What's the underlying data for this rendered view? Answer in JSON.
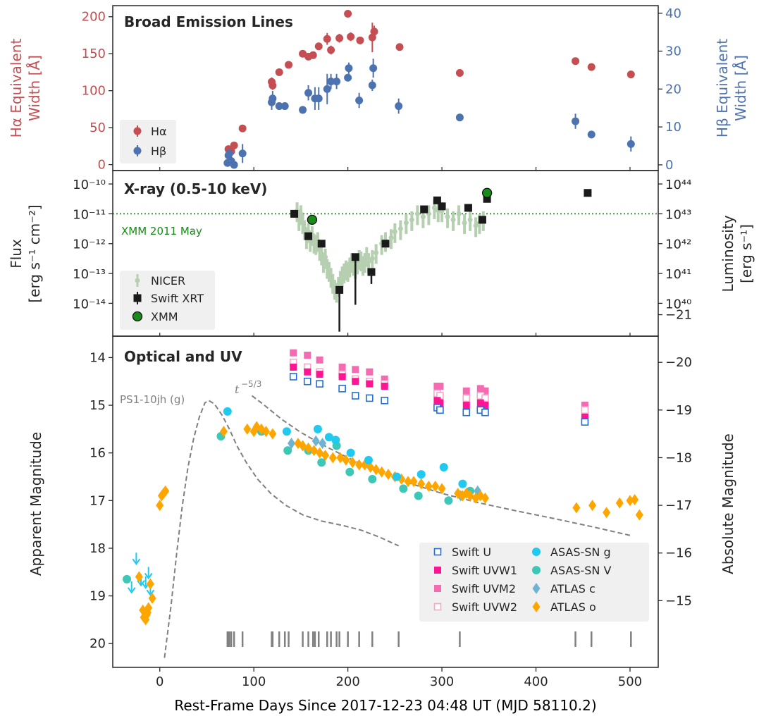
{
  "chart_data": [
    {
      "type": "scatter",
      "title": "Broad Emission Lines",
      "ylabel": "Hα Equivalent Width [Å]",
      "ylabel_lines": [
        "Hα Equivalent",
        "Width [Å]"
      ],
      "y2label": "Hβ Equivalent Width [Å]",
      "y2label_lines": [
        "Hβ Equivalent",
        "Width [Å]"
      ],
      "xlim": [
        -50,
        530
      ],
      "ylim": [
        -8,
        215
      ],
      "y2lim": [
        -1.5,
        42
      ],
      "yticks": [
        0,
        50,
        100,
        150,
        200
      ],
      "y2ticks": [
        0,
        10,
        20,
        30,
        40
      ],
      "series": [
        {
          "name": "Hα",
          "color": "#c44e52",
          "x": [
            73,
            76,
            79,
            88,
            119,
            120,
            127,
            137,
            152,
            158,
            163,
            169,
            178,
            182,
            191,
            200,
            203,
            213,
            226,
            228,
            255,
            319,
            442,
            459,
            501
          ],
          "y": [
            21,
            18,
            26,
            49,
            112,
            107,
            125,
            135,
            150,
            146,
            148,
            160,
            170,
            155,
            171,
            204,
            173,
            168,
            172,
            180,
            159,
            124,
            140,
            132,
            122
          ],
          "yerr": [
            4,
            3,
            3,
            4,
            6,
            6,
            4,
            4,
            4,
            4,
            4,
            5,
            8,
            6,
            6,
            4,
            6,
            5,
            20,
            8,
            5,
            4,
            4,
            4,
            3
          ]
        },
        {
          "name": "Hβ",
          "color": "#4c72b0",
          "x": [
            72,
            73,
            74,
            76,
            79,
            88,
            119,
            120,
            127,
            133,
            152,
            158,
            165,
            169,
            178,
            182,
            188,
            200,
            201,
            212,
            226,
            227,
            254,
            319,
            442,
            459,
            501
          ],
          "y": [
            0.5,
            2.5,
            3,
            1,
            0,
            3,
            16.5,
            17.5,
            15.5,
            15.5,
            14.5,
            19,
            17.5,
            17.5,
            20,
            22,
            22,
            23,
            25.5,
            17,
            21,
            25.5,
            15.5,
            12.5,
            11.5,
            8,
            5.5
          ],
          "yerr": [
            0.8,
            1,
            1,
            1,
            1,
            2.5,
            2,
            2,
            1,
            1,
            1,
            2,
            3,
            3,
            4,
            2,
            2,
            1,
            1.5,
            2,
            1.5,
            2.5,
            2,
            1,
            2,
            1,
            2
          ]
        }
      ],
      "legend": {
        "position": "lower left",
        "entries": [
          "Hα",
          "Hβ"
        ]
      }
    },
    {
      "type": "scatter",
      "title": "X-ray (0.5-10 keV)",
      "ylabel": "Flux [erg s⁻¹ cm⁻²]",
      "ylabel_lines": [
        "Flux",
        "[erg s⁻¹ cm⁻²]"
      ],
      "y2label": "Luminosity [erg s⁻¹]",
      "y2label_lines": [
        "Luminosity",
        "[erg s⁻¹]"
      ],
      "yscale": "log",
      "y_log_lim": [
        -15.1,
        -9.55
      ],
      "yticks": [
        "10⁻¹⁰",
        "10⁻¹¹",
        "10⁻¹²",
        "10⁻¹³",
        "10⁻¹⁴"
      ],
      "y2ticks": [
        "10⁴⁴",
        "10⁴³",
        "10⁴²",
        "10⁴¹",
        "10⁴⁰"
      ],
      "reference_line": {
        "label": "XMM 2011 May",
        "log_flux": -11.0,
        "color": "#1a8a1a"
      },
      "series": [
        {
          "name": "NICER",
          "color": "#b6cfb1",
          "x": [
            146,
            148,
            150,
            152,
            154,
            156,
            158,
            160,
            162,
            164,
            166,
            168,
            170,
            172,
            174,
            176,
            178,
            180,
            182,
            184,
            186,
            188,
            190,
            192,
            194,
            196,
            198,
            200,
            202,
            204,
            206,
            208,
            210,
            212,
            214,
            216,
            218,
            220,
            222,
            226,
            230,
            236,
            240,
            246,
            250,
            256,
            262,
            268,
            274,
            280,
            286,
            292,
            296,
            300,
            306,
            312,
            318,
            324,
            330,
            336,
            340,
            344
          ],
          "y": [
            -10.9,
            -11.2,
            -11.0,
            -11.3,
            -11.5,
            -11.8,
            -11.6,
            -11.9,
            -11.7,
            -11.95,
            -12.0,
            -11.9,
            -12.2,
            -12.35,
            -12.6,
            -12.45,
            -12.8,
            -12.9,
            -13.1,
            -13.3,
            -13.5,
            -13.6,
            -13.4,
            -13.2,
            -13.05,
            -12.95,
            -12.85,
            -12.9,
            -12.75,
            -12.6,
            -12.7,
            -12.8,
            -12.65,
            -12.5,
            -12.55,
            -12.7,
            -12.6,
            -12.4,
            -12.6,
            -12.5,
            -12.3,
            -12.0,
            -11.9,
            -11.8,
            -11.6,
            -11.5,
            -11.3,
            -11.2,
            -11.0,
            -11.1,
            -11.0,
            -10.8,
            -10.9,
            -10.9,
            -11.1,
            -11.2,
            -11.0,
            -11.3,
            -11.2,
            -11.4,
            -11.3,
            -11.2
          ]
        },
        {
          "name": "Swift XRT",
          "color": "#1a1a1a",
          "x": [
            143,
            158,
            172,
            191,
            208,
            225,
            240,
            281,
            295,
            300,
            328,
            343,
            348,
            455
          ],
          "y": [
            -11.0,
            -11.75,
            -12.0,
            -13.55,
            -12.45,
            -12.95,
            -12.0,
            -10.85,
            -10.55,
            -10.75,
            -10.8,
            -11.2,
            -10.5,
            -10.3
          ],
          "err_low": [
            0.1,
            0.1,
            0.1,
            1.4,
            1.6,
            0.4,
            0.1,
            0.1,
            0.1,
            0.1,
            0.1,
            0.1,
            0.1,
            0.1
          ]
        },
        {
          "name": "XMM",
          "color": "#1a8a1a",
          "x": [
            162,
            348
          ],
          "y": [
            -11.2,
            -10.3
          ]
        }
      ],
      "legend": {
        "position": "lower left",
        "entries": [
          "NICER",
          "Swift XRT",
          "XMM"
        ]
      }
    },
    {
      "type": "scatter",
      "title": "Optical and UV",
      "xlabel": "Rest-Frame Days Since 2017-12-23 04:48 UT (MJD 58110.2)",
      "ylabel": "Apparent Magnitude",
      "y2label": "Absolute Magnitude",
      "xlim": [
        -50,
        530
      ],
      "xticks": [
        0,
        100,
        200,
        300,
        400,
        500
      ],
      "ylim": [
        20.5,
        13.55
      ],
      "yticks": [
        14,
        15,
        16,
        17,
        18,
        19,
        20
      ],
      "y2ticks": [
        -21,
        -20,
        -19,
        -18,
        -17,
        -16,
        -15
      ],
      "annotations": {
        "template_label": "PS1-10jh (g)",
        "powerlaw_label": "t",
        "powerlaw_exponent": "−5/3"
      },
      "template_curve": {
        "name": "PS1-10jh (g)",
        "x": [
          5,
          12,
          18,
          24,
          30,
          36,
          42,
          48,
          52,
          58,
          66,
          74,
          82,
          92,
          104,
          118,
          134,
          152,
          172,
          194,
          214,
          234,
          254
        ],
        "y": [
          20.3,
          19.2,
          18.1,
          17.1,
          16.3,
          15.7,
          15.25,
          14.95,
          14.9,
          14.97,
          15.2,
          15.5,
          15.85,
          16.2,
          16.55,
          16.85,
          17.1,
          17.3,
          17.43,
          17.52,
          17.62,
          17.77,
          17.95
        ]
      },
      "powerlaw_curve": {
        "name": "t⁻⁵ᐟ³",
        "x": [
          98,
          110,
          130,
          150,
          175,
          200,
          230,
          260,
          300,
          340,
          380,
          420,
          460,
          500
        ],
        "y": [
          14.8,
          14.98,
          15.3,
          15.57,
          15.85,
          16.1,
          16.37,
          16.6,
          16.85,
          17.05,
          17.22,
          17.38,
          17.55,
          17.73
        ]
      },
      "detection_epochs": [
        72,
        73,
        74,
        76,
        79,
        88,
        119,
        120,
        127,
        133,
        137,
        152,
        158,
        163,
        165,
        169,
        178,
        182,
        188,
        191,
        200,
        212,
        226,
        254,
        319,
        442,
        459,
        501
      ],
      "series": [
        {
          "name": "Swift U",
          "marker": "open-square",
          "color": "#1f6fd6",
          "x": [
            142,
            157,
            170,
            194,
            208,
            223,
            239,
            295,
            298,
            326,
            341,
            346,
            452
          ],
          "y": [
            14.4,
            14.5,
            14.55,
            14.65,
            14.8,
            14.85,
            14.9,
            15.05,
            15.1,
            15.15,
            15.1,
            15.15,
            15.35
          ]
        },
        {
          "name": "Swift UVW1",
          "marker": "filled-square",
          "color": "#ff1493",
          "x": [
            142,
            157,
            170,
            194,
            208,
            223,
            239,
            295,
            298,
            326,
            341,
            346,
            452
          ],
          "y": [
            14.2,
            14.3,
            14.35,
            14.4,
            14.5,
            14.55,
            14.6,
            14.9,
            14.95,
            15.0,
            14.95,
            15.0,
            15.25
          ]
        },
        {
          "name": "Swift UVM2",
          "marker": "filled-square",
          "color": "#f46bb2",
          "x": [
            142,
            157,
            170,
            194,
            208,
            223,
            239,
            295,
            298,
            326,
            341,
            346,
            452
          ],
          "y": [
            13.9,
            13.95,
            14.05,
            14.2,
            14.25,
            14.3,
            14.45,
            14.6,
            14.6,
            14.7,
            14.65,
            14.7,
            15.0
          ]
        },
        {
          "name": "Swift UVW2",
          "marker": "open-square",
          "color": "#f7a8c8",
          "x": [
            142,
            157,
            170,
            194,
            208,
            223,
            239,
            295,
            298,
            326,
            341,
            346,
            452
          ],
          "y": [
            14.1,
            14.2,
            14.3,
            14.35,
            14.45,
            14.5,
            14.55,
            14.75,
            14.8,
            14.85,
            14.8,
            14.85,
            15.1
          ]
        },
        {
          "name": "ASAS-SN g",
          "marker": "circle",
          "color": "#1fc9f0",
          "x": [
            72,
            135,
            168,
            180,
            187,
            203,
            222,
            252,
            278,
            302,
            322
          ],
          "y": [
            15.13,
            15.55,
            15.5,
            15.67,
            15.73,
            16.0,
            16.15,
            16.5,
            16.45,
            16.3,
            16.65
          ]
        },
        {
          "name": "ASAS-SN V",
          "marker": "circle",
          "color": "#3cc7b6",
          "x": [
            -35,
            65,
            108,
            136,
            158,
            172,
            188,
            202,
            226,
            259,
            275,
            307,
            330
          ],
          "y": [
            18.65,
            15.65,
            15.55,
            15.95,
            15.95,
            16.2,
            15.85,
            16.4,
            16.55,
            16.75,
            16.9,
            17.0,
            16.8
          ]
        },
        {
          "name": "ATLAS c",
          "marker": "diamond",
          "color": "#6fb3d2",
          "x": [
            140,
            166,
            173,
            320,
            338
          ],
          "y": [
            15.8,
            15.75,
            15.8,
            16.9,
            16.8
          ]
        },
        {
          "name": "ATLAS o",
          "marker": "diamond",
          "color": "#ffa500",
          "x": [
            -22,
            -18,
            -17,
            -15,
            -14,
            -13,
            -12,
            -10,
            -8,
            0,
            2,
            4,
            6,
            68,
            93,
            100,
            103,
            108,
            113,
            120,
            147,
            152,
            158,
            164,
            170,
            176,
            184,
            192,
            198,
            205,
            212,
            218,
            224,
            230,
            236,
            243,
            250,
            257,
            264,
            270,
            278,
            286,
            293,
            300,
            317,
            322,
            326,
            330,
            336,
            341,
            346,
            443,
            460,
            475,
            489,
            500,
            505,
            510
          ],
          "y": [
            18.6,
            19.3,
            19.45,
            19.5,
            19.4,
            19.35,
            19.25,
            18.75,
            19.05,
            17.1,
            16.9,
            16.85,
            16.8,
            15.55,
            15.5,
            15.55,
            15.45,
            15.5,
            15.55,
            15.6,
            15.8,
            15.85,
            15.9,
            15.95,
            16.0,
            16.05,
            16.1,
            16.1,
            16.15,
            16.2,
            16.25,
            16.25,
            16.3,
            16.35,
            16.4,
            16.45,
            16.5,
            16.55,
            16.6,
            16.6,
            16.65,
            16.7,
            16.7,
            16.75,
            16.85,
            16.9,
            16.85,
            16.9,
            16.95,
            16.9,
            16.95,
            17.15,
            17.1,
            17.25,
            17.05,
            17.0,
            16.98,
            17.3
          ]
        }
      ],
      "upper_limits": {
        "asassn_g_x": [
          -30,
          -25,
          -20,
          -15,
          -12,
          -10
        ],
        "asassn_g_y": [
          18.9,
          18.3,
          18.75,
          18.8,
          18.6,
          18.95
        ]
      },
      "legend": {
        "position": "lower right",
        "entries": [
          "Swift U",
          "Swift UVW1",
          "Swift UVM2",
          "Swift UVW2",
          "ASAS-SN g",
          "ASAS-SN V",
          "ATLAS c",
          "ATLAS o"
        ]
      }
    }
  ]
}
